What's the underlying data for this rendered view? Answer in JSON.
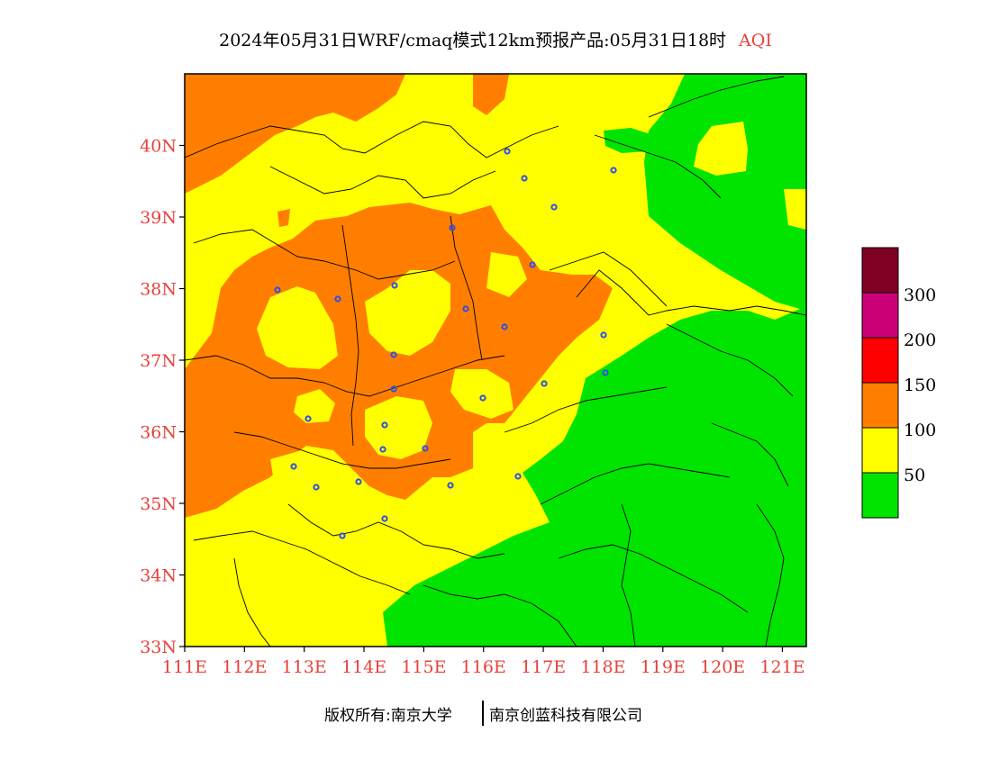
{
  "title": {
    "main": "2024年05月31日WRF/cmaq模式12km预报产品:05月31日18时",
    "product": "AQI"
  },
  "axes": {
    "lat_labels": [
      "33N",
      "34N",
      "35N",
      "36N",
      "37N",
      "38N",
      "39N",
      "40N"
    ],
    "lon_labels": [
      "111E",
      "112E",
      "113E",
      "114E",
      "115E",
      "116E",
      "117E",
      "118E",
      "119E",
      "120E",
      "121E"
    ],
    "lat_range": [
      33,
      41
    ],
    "lon_range": [
      111,
      121.4
    ]
  },
  "legend": {
    "levels": [
      "300",
      "200",
      "150",
      "100",
      "50"
    ],
    "colors": {
      "c0_50": "#00e400",
      "c50_100": "#ffff00",
      "c100_150": "#ff7e00",
      "c150_200": "#ff0000",
      "c200_300": "#cc0077",
      "c300_plus": "#7e0023"
    }
  },
  "colors": {
    "label_red": "#e8413b",
    "city_marker": "#3050e0",
    "boundary": "#000000"
  },
  "footer": {
    "left": "版权所有:南京大学",
    "right": "南京创蓝科技有限公司"
  }
}
